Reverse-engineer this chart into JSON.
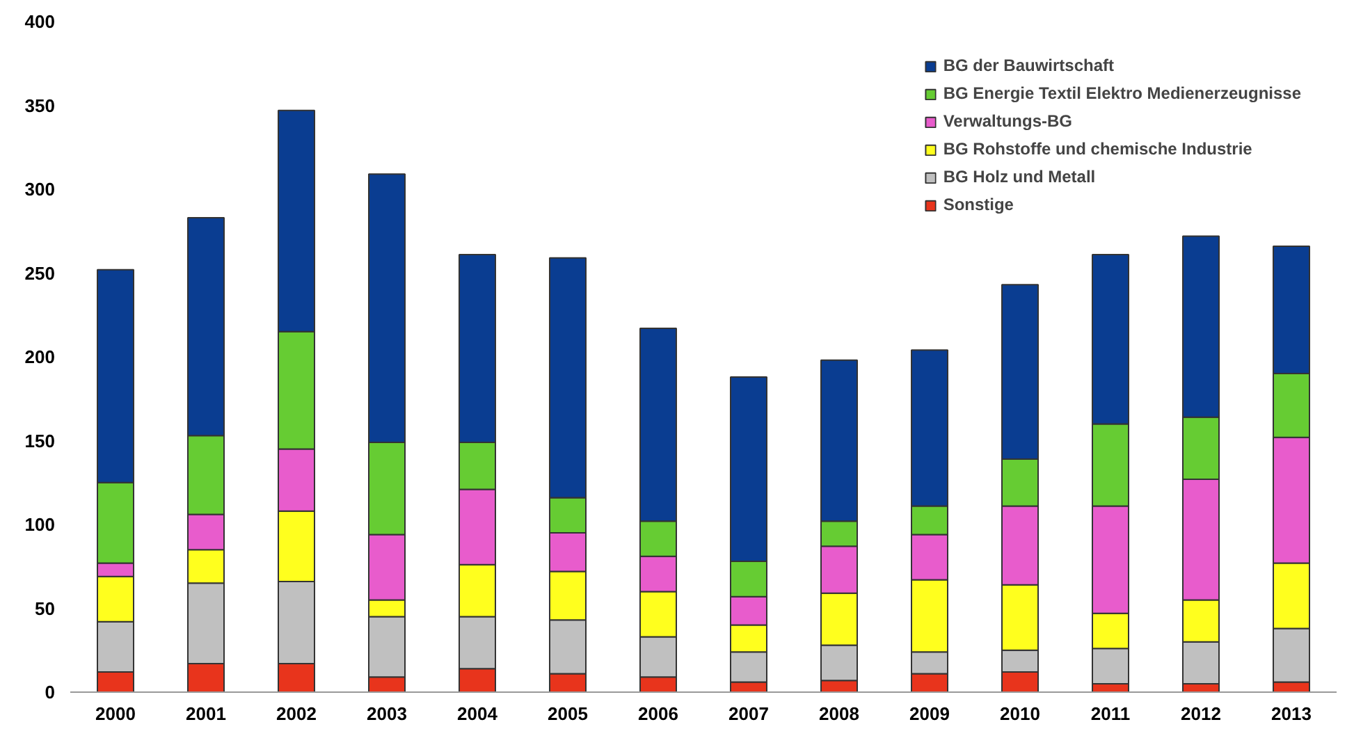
{
  "chart_data": {
    "type": "bar",
    "stacked": true,
    "categories": [
      "2000",
      "2001",
      "2002",
      "2003",
      "2004",
      "2005",
      "2006",
      "2007",
      "2008",
      "2009",
      "2010",
      "2011",
      "2012",
      "2013"
    ],
    "ylim": [
      0,
      400
    ],
    "yticks": [
      0,
      50,
      100,
      150,
      200,
      250,
      300,
      350,
      400
    ],
    "grid": false,
    "legend": "top right",
    "series": [
      {
        "name": "Sonstige",
        "color": "#e8341c",
        "values": [
          12,
          17,
          17,
          9,
          14,
          11,
          9,
          6,
          7,
          11,
          12,
          5,
          5,
          6
        ]
      },
      {
        "name": "BG Holz und Metall",
        "color": "#c0c0c0",
        "values": [
          30,
          48,
          49,
          36,
          31,
          32,
          24,
          18,
          21,
          13,
          13,
          21,
          25,
          32
        ]
      },
      {
        "name": "BG Rohstoffe und chemische Industrie",
        "color": "#ffff1e",
        "values": [
          27,
          20,
          42,
          10,
          31,
          29,
          27,
          16,
          31,
          43,
          39,
          21,
          25,
          39
        ]
      },
      {
        "name": "Verwaltungs-BG",
        "color": "#e85ccc",
        "values": [
          8,
          21,
          37,
          39,
          45,
          23,
          21,
          17,
          28,
          27,
          47,
          64,
          72,
          75
        ]
      },
      {
        "name": "BG Energie Textil Elektro Medienerzeugnisse",
        "color": "#66cc33",
        "values": [
          48,
          47,
          70,
          55,
          28,
          21,
          21,
          21,
          15,
          17,
          28,
          49,
          37,
          38
        ]
      },
      {
        "name": "BG der Bauwirtschaft",
        "color": "#0a3d91",
        "values": [
          127,
          130,
          132,
          160,
          112,
          143,
          115,
          110,
          96,
          93,
          104,
          101,
          108,
          76
        ]
      }
    ]
  }
}
